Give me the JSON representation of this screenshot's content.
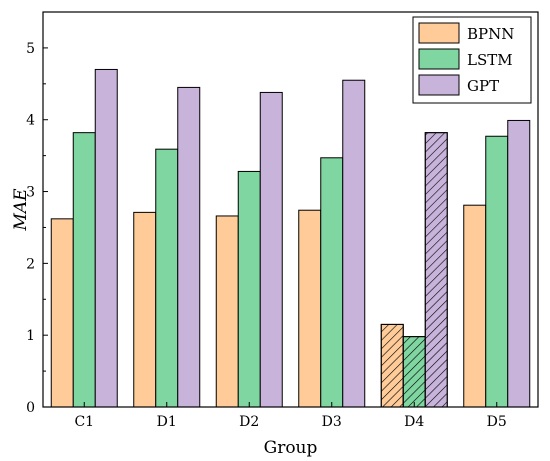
{
  "chart_data": {
    "type": "bar",
    "categories": [
      "C1",
      "D1",
      "D2",
      "D3",
      "D4",
      "D5"
    ],
    "series": [
      {
        "name": "BPNN",
        "values": [
          2.62,
          2.71,
          2.66,
          2.74,
          1.15,
          2.81
        ],
        "color": "#FFCC99"
      },
      {
        "name": "LSTM",
        "values": [
          3.82,
          3.59,
          3.28,
          3.47,
          0.98,
          3.77
        ],
        "color": "#7FD6A0"
      },
      {
        "name": "GPT",
        "values": [
          4.7,
          4.45,
          4.38,
          4.55,
          3.82,
          3.99
        ],
        "color": "#C8B3DB"
      }
    ],
    "hatched_category": "D4",
    "xlabel": "Group",
    "ylabel": "MAE",
    "ylim": [
      0,
      5.5
    ],
    "yticks": [
      0,
      1,
      2,
      3,
      4,
      5
    ],
    "grid": false,
    "legend": "top-right"
  }
}
